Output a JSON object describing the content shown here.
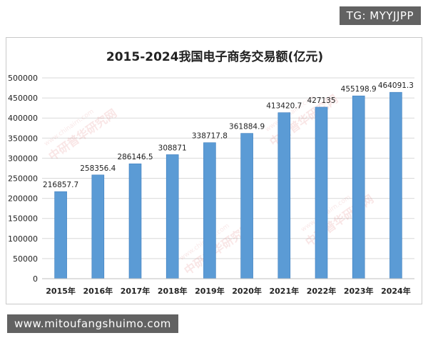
{
  "overlay": {
    "top_right": "TG: MYYJJPP",
    "bottom_left": "www.mitoufangshuimo.com"
  },
  "watermark": {
    "brand": "中研普华研究网",
    "site": "www.chinairn.com"
  },
  "colors": {
    "bar": "#5b9bd5",
    "bar_edge": "#3f7fbf",
    "grid": "#d9d9d9",
    "text": "#222222"
  },
  "chart_data": {
    "type": "bar",
    "title": "2015-2024我国电子商务交易额(亿元)",
    "categories": [
      "2015年",
      "2016年",
      "2017年",
      "2018年",
      "2019年",
      "2020年",
      "2021年",
      "2022年",
      "2023年",
      "2024年"
    ],
    "values": [
      216857.7,
      258356.4,
      286146.5,
      308871,
      338717.8,
      361884.9,
      413420.7,
      427135,
      455198.9,
      464091.3
    ],
    "value_labels": [
      "216857.7",
      "258356.4",
      "286146.5",
      "308871",
      "338717.8",
      "361884.9",
      "413420.7",
      "427135",
      "455198.9",
      "464091.3"
    ],
    "y_ticks": [
      "0",
      "50000",
      "100000",
      "150000",
      "200000",
      "250000",
      "300000",
      "350000",
      "400000",
      "450000",
      "500000"
    ],
    "ylim": [
      0,
      500000
    ],
    "grid": true,
    "legend": "none"
  }
}
